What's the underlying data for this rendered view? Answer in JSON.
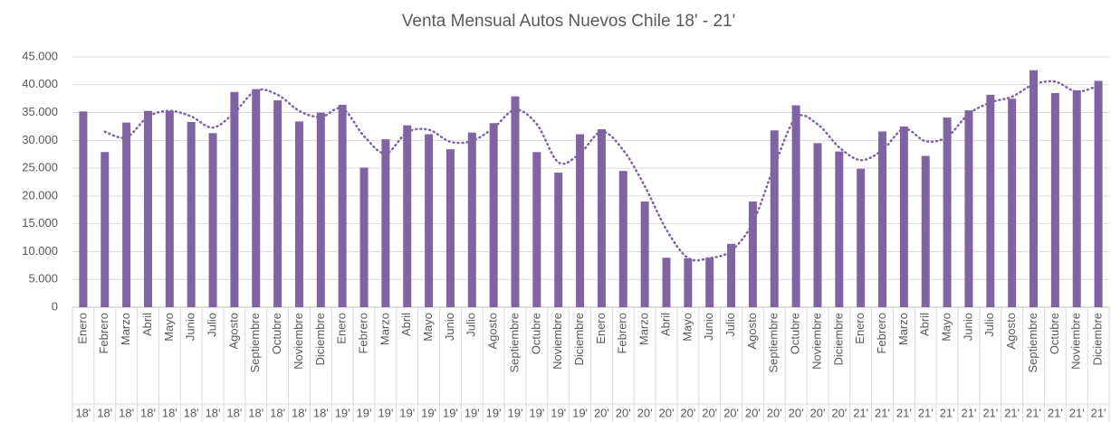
{
  "chart_data": {
    "type": "bar",
    "title": "Venta Mensual Autos Nuevos Chile 18' - 21'",
    "categories": [
      "Enero",
      "Febrero",
      "Marzo",
      "Abril",
      "Mayo",
      "Junio",
      "Julio",
      "Agosto",
      "Septiembre",
      "Octubre",
      "Noviembre",
      "Diciembre",
      "Enero",
      "Febrero",
      "Marzo",
      "Abril",
      "Mayo",
      "Junio",
      "Julio",
      "Agosto",
      "Septiembre",
      "Octubre",
      "Noviembre",
      "Diciembre",
      "Enero",
      "Febrero",
      "Marzo",
      "Abril",
      "Mayo",
      "Junio",
      "Julio",
      "Agosto",
      "Septiembre",
      "Octubre",
      "Noviembre",
      "Diciembre",
      "Enero",
      "Febrero",
      "Marzo",
      "Abril",
      "Mayo",
      "Junio",
      "Julio",
      "Agosto",
      "Septiembre",
      "Octubre",
      "Noviembre",
      "Diciembre"
    ],
    "years": [
      "18'",
      "18'",
      "18'",
      "18'",
      "18'",
      "18'",
      "18'",
      "18'",
      "18'",
      "18'",
      "18'",
      "18'",
      "19'",
      "19'",
      "19'",
      "19'",
      "19'",
      "19'",
      "19'",
      "19'",
      "19'",
      "19'",
      "19'",
      "19'",
      "20'",
      "20'",
      "20'",
      "20'",
      "20'",
      "20'",
      "20'",
      "20'",
      "20'",
      "20'",
      "20'",
      "20'",
      "21'",
      "21'",
      "21'",
      "21'",
      "21'",
      "21'",
      "21'",
      "21'",
      "21'",
      "21'",
      "21'",
      "21'"
    ],
    "values": [
      35200,
      27900,
      33200,
      35300,
      35300,
      33300,
      31300,
      38700,
      39200,
      37200,
      33400,
      35000,
      36400,
      25100,
      30200,
      32700,
      31100,
      28400,
      31400,
      33100,
      37900,
      27900,
      24200,
      31100,
      32000,
      24500,
      19000,
      8900,
      8800,
      8900,
      11400,
      19000,
      31800,
      36300,
      29500,
      28000,
      24900,
      31600,
      32500,
      27200,
      34100,
      35400,
      38200,
      37500,
      42600,
      38500,
      39000,
      40700
    ],
    "color": "#8064a2",
    "trendline": {
      "type": "moving_average",
      "period": 2,
      "color": "#8064a2",
      "style": "dotted"
    },
    "ylim": [
      0,
      45000
    ],
    "yticks": [
      0,
      {
        "value": 5000,
        "label": "5.000"
      },
      {
        "value": 10000,
        "label": "10.000"
      },
      {
        "value": 15000,
        "label": "15.000"
      },
      {
        "value": 20000,
        "label": "20.000"
      },
      {
        "value": 25000,
        "label": "25.000"
      },
      {
        "value": 30000,
        "label": "30.000"
      },
      {
        "value": 35000,
        "label": "35.000"
      },
      {
        "value": 40000,
        "label": "40.000"
      },
      {
        "value": 45000,
        "label": "45.000"
      }
    ],
    "grid": true
  }
}
